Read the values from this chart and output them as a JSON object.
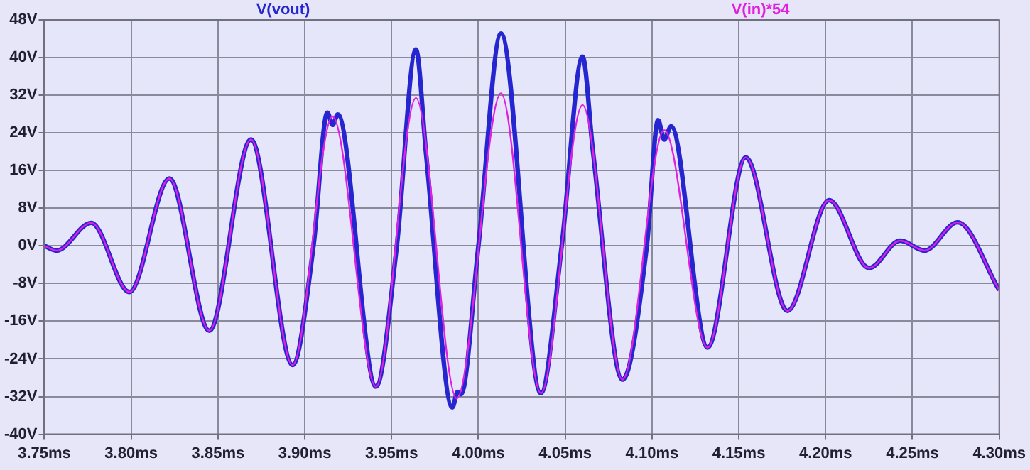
{
  "chart_data": {
    "type": "line",
    "legend": "top",
    "grid": true,
    "line_style": "solid",
    "marker": "none",
    "xlim": [
      3.75,
      4.3
    ],
    "xticks": [
      {
        "value": 3.75,
        "label": "3.75ms"
      },
      {
        "value": 3.8,
        "label": "3.80ms"
      },
      {
        "value": 3.85,
        "label": "3.85ms"
      },
      {
        "value": 3.9,
        "label": "3.90ms"
      },
      {
        "value": 3.95,
        "label": "3.95ms"
      },
      {
        "value": 4.0,
        "label": "4.00ms"
      },
      {
        "value": 4.05,
        "label": "4.05ms"
      },
      {
        "value": 4.1,
        "label": "4.10ms"
      },
      {
        "value": 4.15,
        "label": "4.15ms"
      },
      {
        "value": 4.2,
        "label": "4.20ms"
      },
      {
        "value": 4.25,
        "label": "4.25ms"
      },
      {
        "value": 4.3,
        "label": "4.30ms"
      }
    ],
    "ylim": [
      -40,
      48
    ],
    "yticks": [
      {
        "value": -40,
        "label": "-40V"
      },
      {
        "value": -32,
        "label": "-32V"
      },
      {
        "value": -24,
        "label": "-24V"
      },
      {
        "value": -16,
        "label": "-16V"
      },
      {
        "value": -8,
        "label": "-8V"
      },
      {
        "value": 0,
        "label": "0V"
      },
      {
        "value": 8,
        "label": "8V"
      },
      {
        "value": 16,
        "label": "16V"
      },
      {
        "value": 24,
        "label": "24V"
      },
      {
        "value": 32,
        "label": "32V"
      },
      {
        "value": 40,
        "label": "40V"
      },
      {
        "value": 48,
        "label": "48V"
      }
    ],
    "series": [
      {
        "name": "V(vout)",
        "color": "#2626d0",
        "x": [
          3.75,
          3.757,
          3.777,
          3.799,
          3.822,
          3.845,
          3.869,
          3.893,
          3.905,
          3.913,
          3.916,
          3.919,
          3.941,
          3.953,
          3.964,
          3.97,
          3.985,
          3.988,
          3.99,
          4.0,
          4.013,
          4.036,
          4.048,
          4.06,
          4.066,
          4.083,
          4.097,
          4.1035,
          4.107,
          4.111,
          4.132,
          4.154,
          4.178,
          4.202,
          4.225,
          4.243,
          4.257,
          4.276,
          4.3
        ],
        "values": [
          0,
          -1,
          4.9,
          -9.8,
          14.3,
          -18,
          22.6,
          -25.3,
          0,
          28.3,
          25.7,
          27.9,
          -29.9,
          0,
          41.7,
          19,
          -34.3,
          -31,
          -31.5,
          0,
          45.1,
          -31.3,
          0,
          40.2,
          20,
          -28.4,
          0,
          26.7,
          22.6,
          25.4,
          -21.6,
          18.8,
          -13.8,
          9.7,
          -4.7,
          1.1,
          -1,
          5,
          -9.4
        ]
      },
      {
        "name": "V(in)*54",
        "color": "#e020e0",
        "x": [
          3.75,
          3.757,
          3.777,
          3.799,
          3.822,
          3.845,
          3.869,
          3.893,
          3.916,
          3.941,
          3.964,
          3.9875,
          4.013,
          4.036,
          4.06,
          4.083,
          4.107,
          4.132,
          4.154,
          4.178,
          4.202,
          4.225,
          4.243,
          4.257,
          4.276,
          4.3
        ],
        "values": [
          0,
          -1,
          4.9,
          -9.8,
          14.3,
          -18,
          22.6,
          -25.3,
          27.5,
          -29.9,
          31.4,
          -32.4,
          32.4,
          -31.3,
          29.9,
          -28.4,
          24.6,
          -21.6,
          18.8,
          -13.8,
          9.7,
          -4.7,
          1.1,
          -1,
          5,
          -9.4
        ]
      }
    ]
  }
}
